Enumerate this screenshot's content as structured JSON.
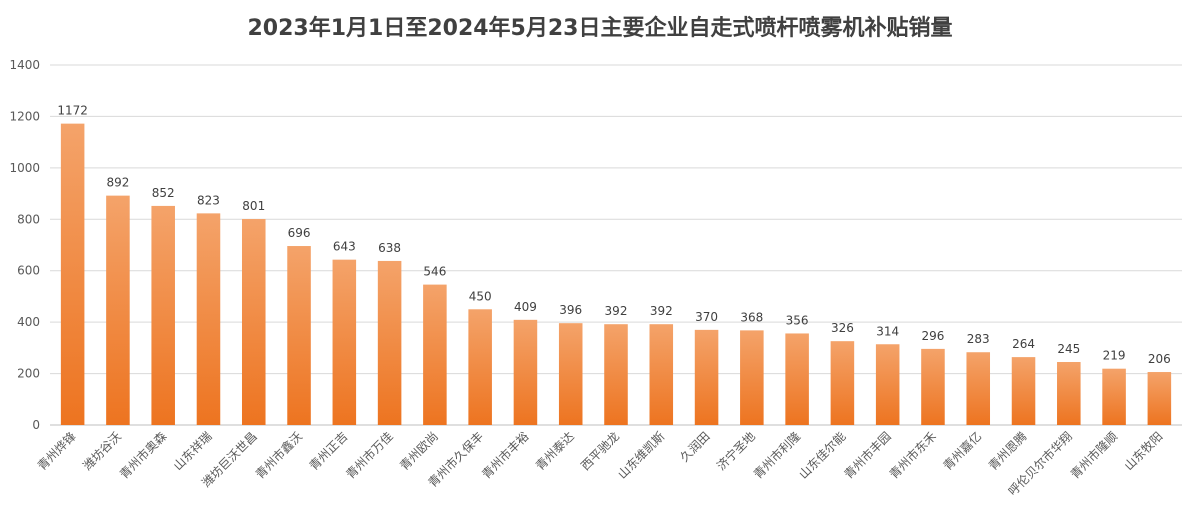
{
  "chart_data": {
    "type": "bar",
    "title": "2023年1月1日至2024年5月23日主要企业自走式喷杆喷雾机补贴销量",
    "xlabel": "",
    "ylabel": "",
    "ylim": [
      0,
      1400
    ],
    "yticks": [
      "0",
      "200",
      "400",
      "600",
      "800",
      "1000",
      "1200",
      "1400"
    ],
    "grid": true,
    "legend": "none",
    "categories": [
      "青州烨锋",
      "潍坊谷沃",
      "青州市奥森",
      "山东祥瑞",
      "潍坊巨沃世昌",
      "青州市鑫沃",
      "青州正吉",
      "青州市万佳",
      "青州欧尚",
      "青州市久保丰",
      "青州市丰裕",
      "青州泰达",
      "西平驰龙",
      "山东维凯斯",
      "久润田",
      "济宁圣地",
      "青州市利隆",
      "山东佳尔能",
      "青州市丰园",
      "青州市东禾",
      "青州嘉亿",
      "青州恩腾",
      "呼伦贝尔市华翔",
      "青州市隆顺",
      "山东牧阳"
    ],
    "values": [
      1172,
      892,
      852,
      823,
      801,
      696,
      643,
      638,
      546,
      450,
      409,
      396,
      392,
      392,
      370,
      368,
      356,
      326,
      314,
      296,
      283,
      264,
      245,
      219,
      206
    ],
    "colors": {
      "bar_top": "#F4A36A",
      "bar_bottom": "#ED7420",
      "grid": "#D9D9D9",
      "axis": "#BFBFBF"
    }
  }
}
